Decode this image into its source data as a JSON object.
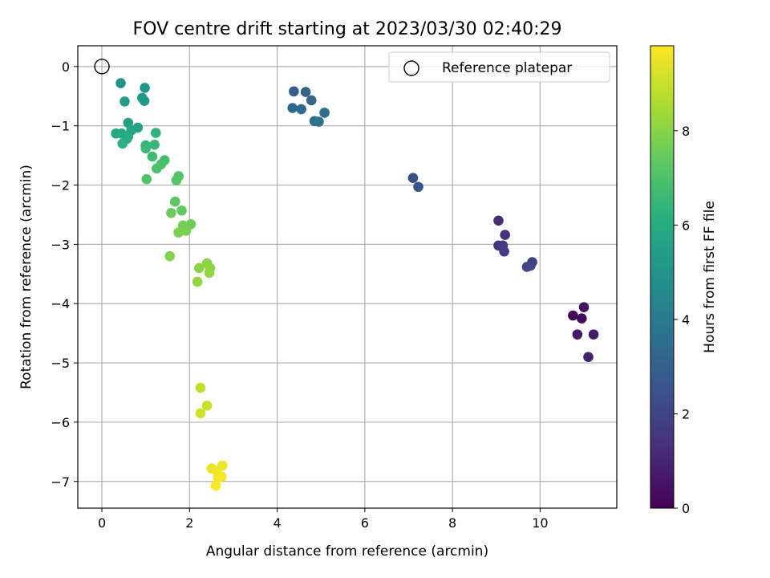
{
  "chart_data": {
    "type": "scatter",
    "title": "FOV centre drift starting at 2023/03/30 02:40:29",
    "xlabel": "Angular distance from reference (arcmin)",
    "ylabel": "Rotation from reference (arcmin)",
    "xlim": [
      -0.55,
      11.75
    ],
    "ylim": [
      -7.45,
      0.35
    ],
    "xticks": [
      0,
      2,
      4,
      6,
      8,
      10
    ],
    "yticks": [
      0,
      -1,
      -2,
      -3,
      -4,
      -5,
      -6,
      -7
    ],
    "xtick_labels": [
      "0",
      "2",
      "4",
      "6",
      "8",
      "10"
    ],
    "ytick_labels": [
      "0",
      "−1",
      "−2",
      "−3",
      "−4",
      "−5",
      "−6",
      "−7"
    ],
    "grid": true,
    "legend": {
      "position": "top-right",
      "entries": [
        {
          "label": "Reference platepar",
          "marker": "hollow-circle"
        }
      ]
    },
    "reference_point": {
      "x": 0,
      "y": 0
    },
    "colorbar": {
      "label": "Hours from first FF file",
      "range": [
        0,
        9.8
      ],
      "ticks": [
        0,
        2,
        4,
        6,
        8
      ],
      "tick_labels": [
        "0",
        "2",
        "4",
        "6",
        "8"
      ],
      "colormap": "viridis"
    },
    "points": [
      {
        "x": 10.75,
        "y": -4.2,
        "c": 0.15
      },
      {
        "x": 10.95,
        "y": -4.25,
        "c": 0.3
      },
      {
        "x": 11.0,
        "y": -4.06,
        "c": 0.45
      },
      {
        "x": 10.85,
        "y": -4.52,
        "c": 0.6
      },
      {
        "x": 11.22,
        "y": -4.52,
        "c": 0.75
      },
      {
        "x": 11.1,
        "y": -4.9,
        "c": 0.9
      },
      {
        "x": 9.05,
        "y": -2.6,
        "c": 1.2
      },
      {
        "x": 9.2,
        "y": -2.84,
        "c": 1.35
      },
      {
        "x": 9.05,
        "y": -3.02,
        "c": 1.5
      },
      {
        "x": 9.15,
        "y": -3.02,
        "c": 1.65
      },
      {
        "x": 9.18,
        "y": -3.12,
        "c": 1.75
      },
      {
        "x": 9.82,
        "y": -3.3,
        "c": 1.85
      },
      {
        "x": 9.78,
        "y": -3.36,
        "c": 1.95
      },
      {
        "x": 9.7,
        "y": -3.38,
        "c": 2.05
      },
      {
        "x": 7.1,
        "y": -1.88,
        "c": 2.4
      },
      {
        "x": 7.22,
        "y": -2.03,
        "c": 2.55
      },
      {
        "x": 4.38,
        "y": -0.42,
        "c": 3.0
      },
      {
        "x": 4.65,
        "y": -0.43,
        "c": 3.1
      },
      {
        "x": 4.78,
        "y": -0.57,
        "c": 3.2
      },
      {
        "x": 4.35,
        "y": -0.7,
        "c": 3.3
      },
      {
        "x": 4.55,
        "y": -0.72,
        "c": 3.4
      },
      {
        "x": 5.08,
        "y": -0.78,
        "c": 3.5
      },
      {
        "x": 4.85,
        "y": -0.92,
        "c": 3.6
      },
      {
        "x": 4.95,
        "y": -0.93,
        "c": 3.7
      },
      {
        "x": 0.43,
        "y": -0.28,
        "c": 5.0
      },
      {
        "x": 0.98,
        "y": -0.36,
        "c": 5.1
      },
      {
        "x": 0.92,
        "y": -0.53,
        "c": 5.2
      },
      {
        "x": 0.97,
        "y": -0.58,
        "c": 5.3
      },
      {
        "x": 0.52,
        "y": -0.59,
        "c": 5.4
      },
      {
        "x": 0.6,
        "y": -0.95,
        "c": 5.5
      },
      {
        "x": 0.82,
        "y": -1.03,
        "c": 5.6
      },
      {
        "x": 0.67,
        "y": -1.08,
        "c": 5.7
      },
      {
        "x": 0.32,
        "y": -1.13,
        "c": 5.8
      },
      {
        "x": 0.45,
        "y": -1.13,
        "c": 5.9
      },
      {
        "x": 0.6,
        "y": -1.18,
        "c": 6.0
      },
      {
        "x": 0.57,
        "y": -1.22,
        "c": 6.1
      },
      {
        "x": 0.47,
        "y": -1.3,
        "c": 6.2
      },
      {
        "x": 1.23,
        "y": -1.12,
        "c": 6.3
      },
      {
        "x": 1.0,
        "y": -1.33,
        "c": 6.4
      },
      {
        "x": 1.2,
        "y": -1.32,
        "c": 6.5
      },
      {
        "x": 1.0,
        "y": -1.38,
        "c": 6.6
      },
      {
        "x": 1.15,
        "y": -1.52,
        "c": 6.7
      },
      {
        "x": 1.43,
        "y": -1.58,
        "c": 6.8
      },
      {
        "x": 1.35,
        "y": -1.65,
        "c": 6.9
      },
      {
        "x": 1.25,
        "y": -1.72,
        "c": 7.0
      },
      {
        "x": 1.02,
        "y": -1.9,
        "c": 7.05
      },
      {
        "x": 1.75,
        "y": -1.85,
        "c": 7.1
      },
      {
        "x": 1.7,
        "y": -1.92,
        "c": 7.2
      },
      {
        "x": 1.67,
        "y": -2.28,
        "c": 7.3
      },
      {
        "x": 1.82,
        "y": -2.43,
        "c": 7.4
      },
      {
        "x": 1.58,
        "y": -2.47,
        "c": 7.5
      },
      {
        "x": 2.03,
        "y": -2.66,
        "c": 7.6
      },
      {
        "x": 1.85,
        "y": -2.68,
        "c": 7.7
      },
      {
        "x": 1.92,
        "y": -2.77,
        "c": 7.75
      },
      {
        "x": 1.75,
        "y": -2.8,
        "c": 7.8
      },
      {
        "x": 1.55,
        "y": -3.2,
        "c": 7.9
      },
      {
        "x": 2.22,
        "y": -3.4,
        "c": 8.0
      },
      {
        "x": 2.4,
        "y": -3.32,
        "c": 8.05
      },
      {
        "x": 2.47,
        "y": -3.4,
        "c": 8.1
      },
      {
        "x": 2.45,
        "y": -3.48,
        "c": 8.15
      },
      {
        "x": 2.18,
        "y": -3.63,
        "c": 8.2
      },
      {
        "x": 2.25,
        "y": -5.42,
        "c": 8.9
      },
      {
        "x": 2.4,
        "y": -5.72,
        "c": 9.0
      },
      {
        "x": 2.25,
        "y": -5.85,
        "c": 9.1
      },
      {
        "x": 2.5,
        "y": -6.78,
        "c": 9.5
      },
      {
        "x": 2.75,
        "y": -6.73,
        "c": 9.55
      },
      {
        "x": 2.62,
        "y": -6.82,
        "c": 9.6
      },
      {
        "x": 2.65,
        "y": -6.93,
        "c": 9.65
      },
      {
        "x": 2.73,
        "y": -6.92,
        "c": 9.7
      },
      {
        "x": 2.6,
        "y": -7.07,
        "c": 9.75
      }
    ]
  }
}
